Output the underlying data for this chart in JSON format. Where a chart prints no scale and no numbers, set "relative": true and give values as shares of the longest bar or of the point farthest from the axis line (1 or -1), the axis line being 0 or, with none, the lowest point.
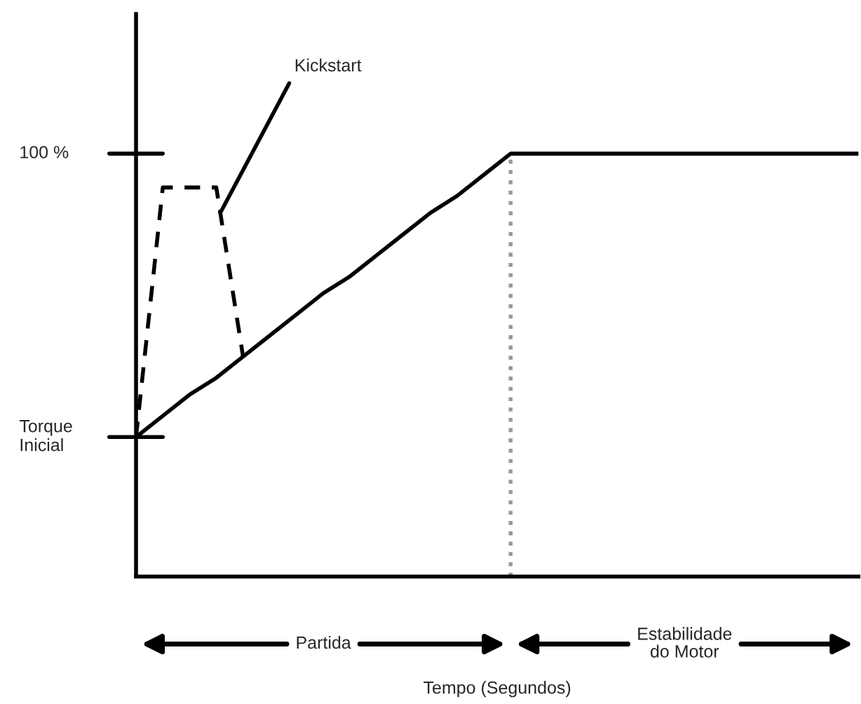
{
  "chart_data": {
    "type": "line",
    "relative": true,
    "categories": [
      null,
      null,
      null,
      null,
      null,
      null,
      null,
      null,
      null,
      null,
      null,
      null,
      null,
      null,
      null,
      null,
      null,
      null,
      null,
      null,
      null,
      null,
      null,
      null,
      null,
      null,
      null,
      null
    ],
    "series": [
      {
        "color": "#000000",
        "line_style": "solid",
        "values": [
          0.33,
          0.38,
          0.43,
          0.47,
          0.52,
          0.57,
          0.62,
          0.67,
          0.71,
          0.76,
          0.81,
          0.86,
          0.9,
          0.95,
          1,
          1,
          1,
          1,
          1,
          1,
          1,
          1,
          1,
          1,
          1,
          1,
          1,
          1
        ]
      },
      {
        "color": "#000000",
        "line_style": "dashed",
        "values": [
          0.33,
          0.92,
          0.92,
          0.92,
          0.52,
          null,
          null,
          null,
          null,
          null,
          null,
          null,
          null,
          null,
          null,
          null,
          null,
          null,
          null,
          null,
          null,
          null,
          null,
          null,
          null,
          null,
          null,
          null
        ]
      }
    ],
    "annotations": [
      "100 %",
      "Torque\nInicial",
      "Kickstart",
      "Partida",
      "Estabilidade\ndo Motor",
      "Tempo (Segundos)"
    ]
  }
}
